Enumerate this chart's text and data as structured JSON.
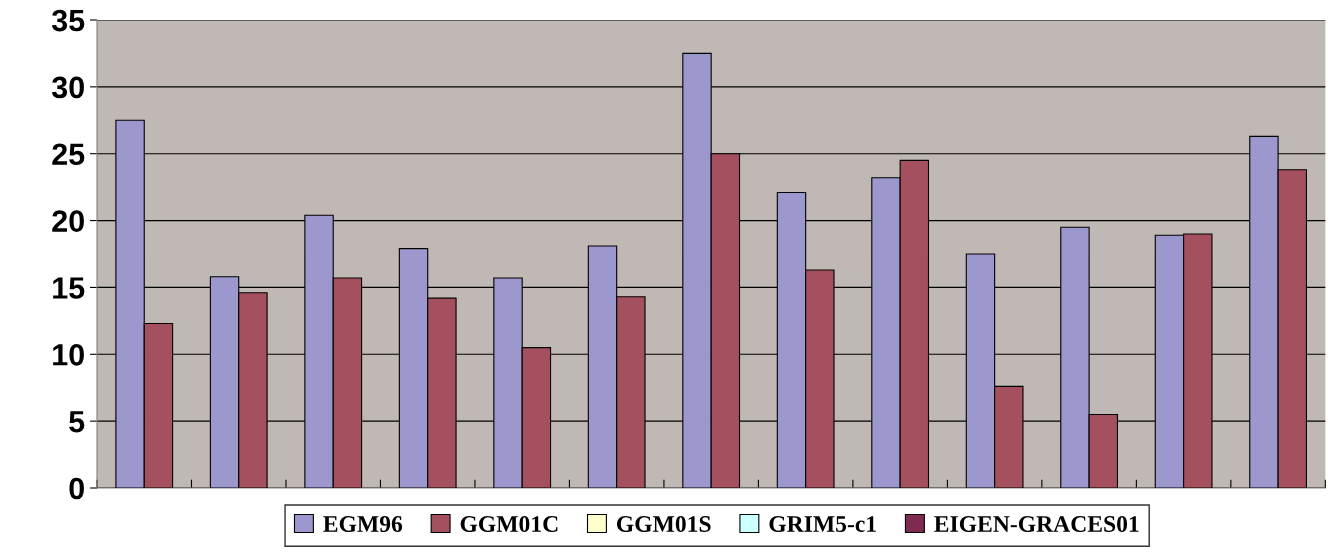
{
  "chart_data": {
    "type": "bar",
    "categories": [
      null,
      null,
      null,
      null,
      null,
      null,
      null,
      null,
      null,
      null,
      null,
      null,
      null
    ],
    "series": [
      {
        "name": "EGM96",
        "color": "#9c97cc",
        "values": [
          27.5,
          15.8,
          20.4,
          17.9,
          15.7,
          18.1,
          32.5,
          22.1,
          23.2,
          17.5,
          19.5,
          18.9,
          26.3
        ]
      },
      {
        "name": "GGM01C",
        "color": "#a5505f",
        "values": [
          12.3,
          14.6,
          15.7,
          14.2,
          10.5,
          14.3,
          25.0,
          16.3,
          24.5,
          7.6,
          5.5,
          19.0,
          23.8
        ]
      },
      {
        "name": "GGM01S",
        "color": "#ffffcc",
        "values": [
          null,
          null,
          null,
          null,
          null,
          null,
          null,
          null,
          null,
          null,
          null,
          null,
          null
        ]
      },
      {
        "name": "GRIM5-c1",
        "color": "#ccffff",
        "values": [
          null,
          null,
          null,
          null,
          null,
          null,
          null,
          null,
          null,
          null,
          null,
          null,
          null
        ]
      },
      {
        "name": "EIGEN-GRACES01",
        "color": "#7f2a50",
        "values": [
          null,
          null,
          null,
          null,
          null,
          null,
          null,
          null,
          null,
          null,
          null,
          null,
          null
        ]
      }
    ],
    "ylim": [
      0,
      35
    ],
    "yticks": [
      0,
      5,
      10,
      15,
      20,
      25,
      30,
      35
    ],
    "grid": "y",
    "legend": "bottom"
  }
}
